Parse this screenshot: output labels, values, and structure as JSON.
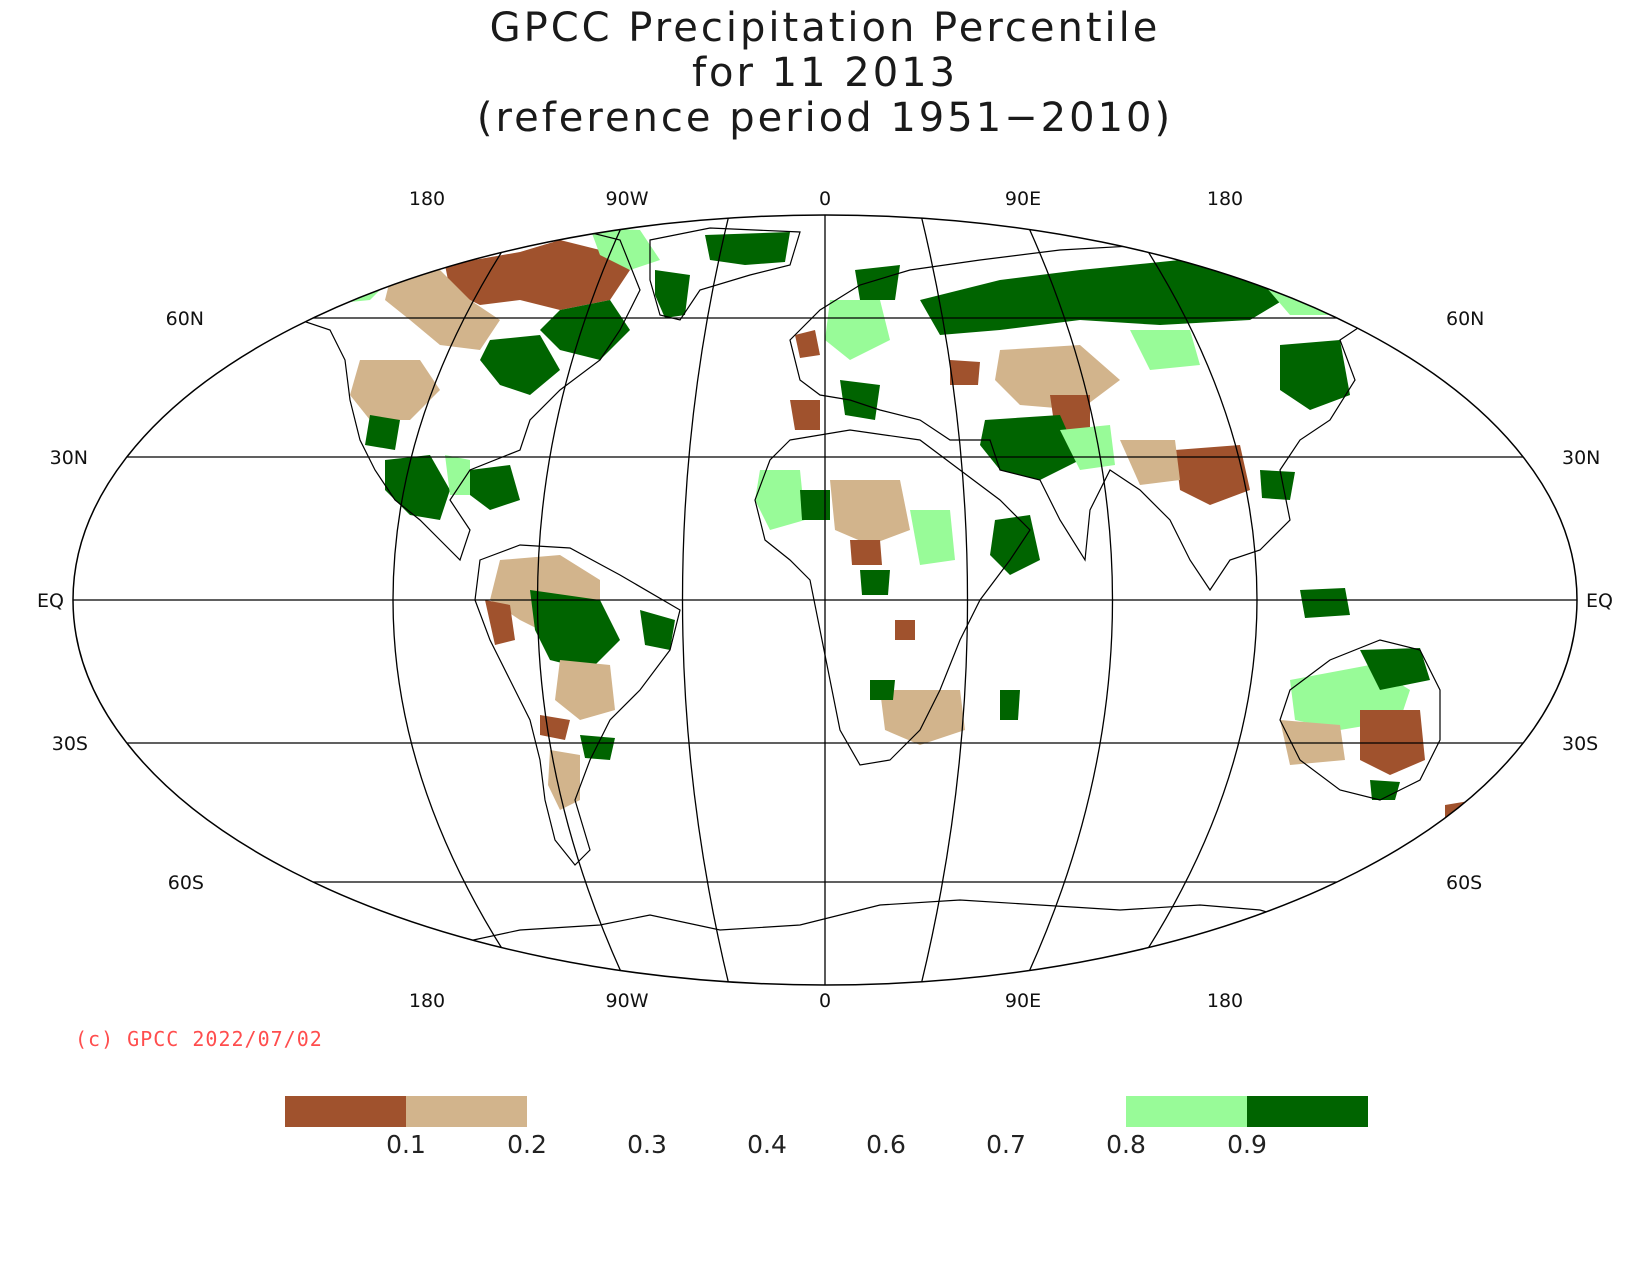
{
  "title": {
    "line1": "GPCC Precipitation Percentile",
    "line2": "for 11 2013",
    "line3": "(reference period 1951−2010)"
  },
  "map": {
    "projection": "Robinson",
    "top_lon_labels": [
      "180",
      "90W",
      "0",
      "90E",
      "180"
    ],
    "bottom_lon_labels": [
      "180",
      "90W",
      "0",
      "90E",
      "180"
    ],
    "left_lat_labels": [
      "60N",
      "30N",
      "EQ",
      "30S",
      "60S"
    ],
    "right_lat_labels": [
      "60N",
      "30N",
      "EQ",
      "30S",
      "60S"
    ]
  },
  "credit": "(c) GPCC 2022/07/02",
  "legend": {
    "swatches": [
      {
        "color": "#a0522d",
        "from": null,
        "to": "0.1"
      },
      {
        "color": "#d2b48c",
        "from": "0.1",
        "to": "0.2"
      },
      {
        "color": "#98fb98",
        "from": "0.8",
        "to": "0.9"
      },
      {
        "color": "#006400",
        "from": "0.9",
        "to": null
      }
    ],
    "ticks": [
      "0.1",
      "0.2",
      "0.3",
      "0.4",
      "0.6",
      "0.7",
      "0.8",
      "0.9"
    ]
  },
  "colors": {
    "very_dry": "#a0522d",
    "dry": "#d2b48c",
    "wet": "#98fb98",
    "very_wet": "#006400",
    "credit": "#ff4d4d"
  }
}
